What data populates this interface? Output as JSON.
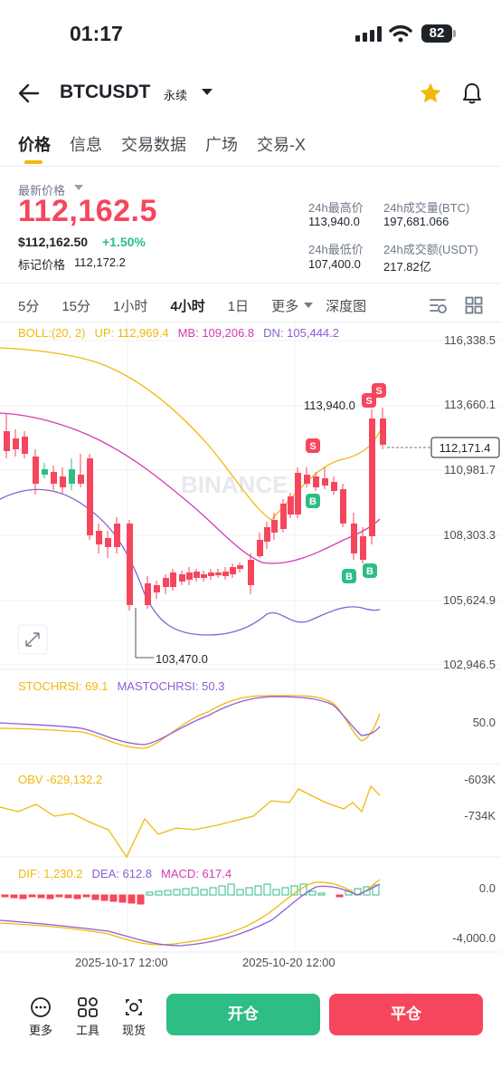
{
  "status": {
    "time": "01:17",
    "battery": "82"
  },
  "header": {
    "symbol": "BTCUSDT",
    "contract_type": "永续"
  },
  "tabs": [
    "价格",
    "信息",
    "交易数据",
    "广场",
    "交易-X"
  ],
  "price": {
    "latest_label": "最新价格",
    "last": "112,162.5",
    "usd": "$112,162.50",
    "change": "+1.50%",
    "mark_label": "标记价格",
    "mark": "112,172.2"
  },
  "stats": {
    "high_label": "24h最高价",
    "high": "113,940.0",
    "low_label": "24h最低价",
    "low": "107,400.0",
    "vol_btc_label": "24h成交量(BTC)",
    "vol_btc": "197,681.066",
    "vol_usdt_label": "24h成交额(USDT)",
    "vol_usdt": "217.82亿"
  },
  "intervals": [
    "5分",
    "15分",
    "1小时",
    "4小时",
    "1日",
    "更多",
    "深度图"
  ],
  "active_interval": "4小时",
  "indicators": {
    "boll": {
      "name": "BOLL:(20, 2)",
      "up": "UP: 112,969.4",
      "mb": "MB: 109,206.8",
      "dn": "DN: 105,444.2"
    },
    "stochrsi": {
      "k": "STOCHRSI: 69.1",
      "d": "MASTOCHRSI: 50.3"
    },
    "obv": "OBV -629,132.2",
    "macd": {
      "dif": "DIF: 1,230.2",
      "dea": "DEA: 612.8",
      "macd": "MACD: 617.4"
    }
  },
  "chart_labels": {
    "price_axis": [
      "116,338.5",
      "113,660.1",
      "110,981.7",
      "108,303.3",
      "105,624.9",
      "102,946.5"
    ],
    "current_price_tag": "112,171.4",
    "high_marker": "113,940.0",
    "low_marker": "103,470.0",
    "stoch_axis": [
      "50.0"
    ],
    "obv_axis": [
      "-603K",
      "-734K"
    ],
    "macd_axis": [
      "0.0",
      "-4,000.0"
    ],
    "time_axis": [
      "2025-10-17 12:00",
      "2025-10-20 12:00"
    ],
    "watermark": "BINANCE"
  },
  "colors": {
    "up": "#2ebd85",
    "down": "#f6465d",
    "accent": "#f0b90b",
    "boll_up": "#f0b90b",
    "boll_mb": "#d63ab3",
    "boll_dn": "#8b5fd4"
  },
  "chart_data": {
    "type": "line",
    "note": "candlestick 4h chart BTCUSDT",
    "ylim": [
      102946.5,
      116338.5
    ]
  },
  "bottom": {
    "tools": [
      "更多",
      "工具",
      "现货"
    ],
    "open_button": "开仓",
    "close_button": "平仓"
  }
}
